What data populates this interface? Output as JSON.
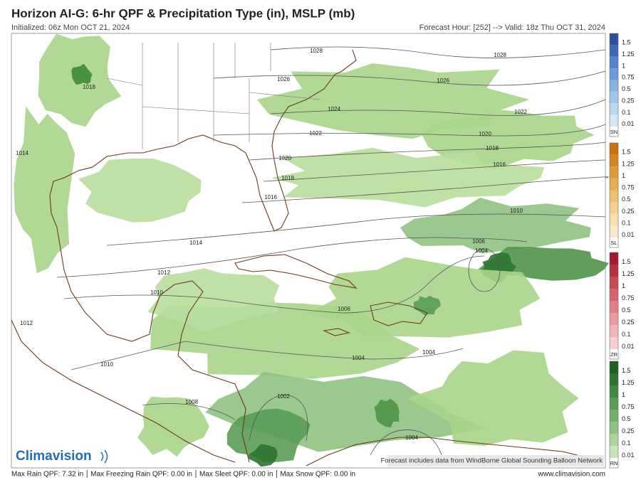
{
  "header": {
    "title": "Horizon AI-G: 6-hr QPF & Precipitation Type (in), MSLP (mb)",
    "initialized": "Initialized: 06z Mon OCT 21, 2024",
    "forecast": "Forecast Hour: [252] --> Valid: 18z Thu OCT 31, 2024"
  },
  "isobar_labels": [
    "1028",
    "1028",
    "1018",
    "1026",
    "1026",
    "1024",
    "1022",
    "1022",
    "1020",
    "1014",
    "1020",
    "1018",
    "1016",
    "1018",
    "1016",
    "1010",
    "1014",
    "1006",
    "1004",
    "1012",
    "1010",
    "1006",
    "1012",
    "1004",
    "1004",
    "1010",
    "1008",
    "1002",
    "1004"
  ],
  "legend": [
    {
      "code": "SN",
      "ticks": [
        "1.5",
        "1.25",
        "1",
        "0.75",
        "0.5",
        "0.25",
        "0.1",
        "0.01"
      ],
      "colors": [
        "#2c4f9e",
        "#3e66b8",
        "#5582cc",
        "#6e9bd8",
        "#87b1e2",
        "#a0c6ea",
        "#b8d8f1",
        "#d2e8f7"
      ]
    },
    {
      "code": "SL",
      "ticks": [
        "1.5",
        "1.25",
        "1",
        "0.75",
        "0.5",
        "0.25",
        "0.1",
        "0.01"
      ],
      "colors": [
        "#c9730e",
        "#d5861f",
        "#e09a36",
        "#e8ad52",
        "#efc06f",
        "#f4d08e",
        "#f8deab",
        "#fbeac8"
      ]
    },
    {
      "code": "ZR",
      "ticks": [
        "1.5",
        "1.25",
        "1",
        "0.75",
        "0.5",
        "0.25",
        "0.1",
        "0.01"
      ],
      "colors": [
        "#a3192e",
        "#b7303f",
        "#c84a55",
        "#d6646d",
        "#e17f86",
        "#ea9aa0",
        "#f1b4b8",
        "#f7cfd1"
      ]
    },
    {
      "code": "RN",
      "ticks": [
        "1.5",
        "1.25",
        "1",
        "0.75",
        "0.5",
        "0.25",
        "0.1",
        "0.01"
      ],
      "colors": [
        "#1f5e22",
        "#2f7330",
        "#438842",
        "#5a9c55",
        "#74b06b",
        "#8fc282",
        "#acd49b",
        "#c8e5b7"
      ]
    }
  ],
  "footer": {
    "stats": [
      "Max Rain QPF: 7.32 in",
      "Max Freezing Rain QPF: 0.00 in",
      "Max Sleet QPF: 0.00 in",
      "Max Snow QPF: 0.00 in"
    ],
    "website": "www.climavision.com",
    "credit": "Forecast includes data from WindBorne Global Sounding Balloon Network",
    "logo": "Climavision"
  }
}
